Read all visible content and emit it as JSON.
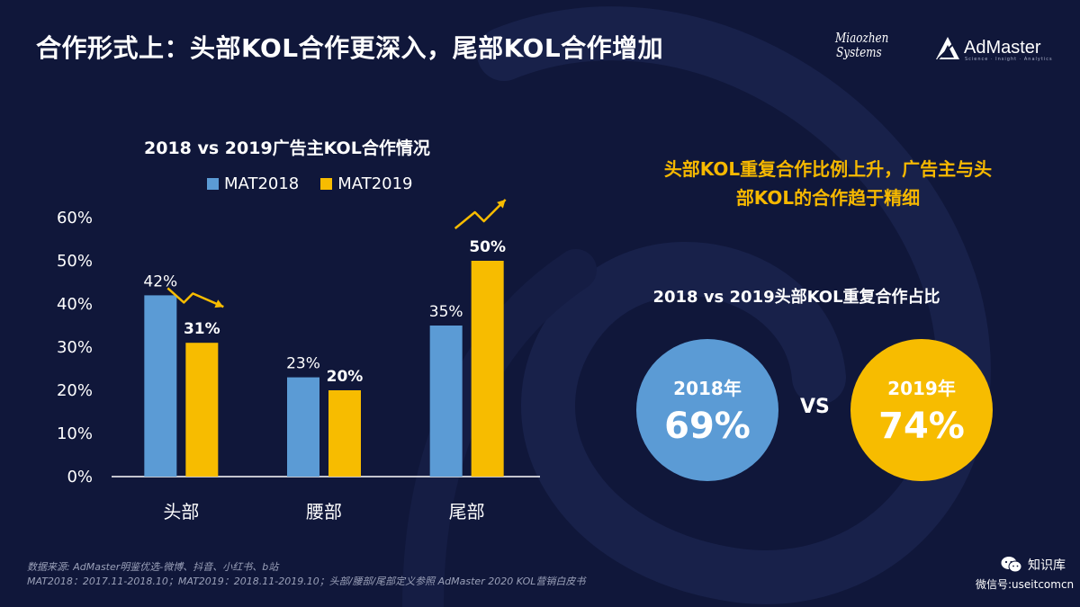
{
  "header": {
    "title": "合作形式上：头部KOL合作更深入，尾部KOL合作增加"
  },
  "logos": {
    "miaozhen_line1": "Miaozhen",
    "miaozhen_line2": "Systems",
    "admaster": "AdMaster",
    "admaster_tagline": "Science · Insight · Analytics"
  },
  "chart_data": {
    "type": "bar",
    "title": "2018 vs 2019广告主KOL合作情况",
    "categories": [
      "头部",
      "腰部",
      "尾部"
    ],
    "series": [
      {
        "name": "MAT2018",
        "values": [
          42,
          23,
          35
        ],
        "labels": [
          "42%",
          "23%",
          "35%"
        ],
        "color": "#5b9bd5",
        "bold_labels": false
      },
      {
        "name": "MAT2019",
        "values": [
          31,
          20,
          50
        ],
        "labels": [
          "31%",
          "20%",
          "50%"
        ],
        "color": "#f7bc00",
        "bold_labels": true
      }
    ],
    "ylim": [
      0,
      60
    ],
    "yticks": [
      "0%",
      "10%",
      "20%",
      "30%",
      "40%",
      "50%",
      "60%"
    ],
    "legend": "top",
    "grid": false,
    "annotations": [
      {
        "category": "头部",
        "trend": "down",
        "color": "#f7bc00"
      },
      {
        "category": "尾部",
        "trend": "up",
        "color": "#f7bc00"
      }
    ]
  },
  "right_panel": {
    "headline_line1": "头部KOL重复合作比例上升，广告主与头",
    "headline_line2": "部KOL的合作趋于精细",
    "subtitle": "2018 vs 2019头部KOL重复合作占比",
    "left_circle": {
      "year": "2018年",
      "value": "69%",
      "color": "#5b9bd5"
    },
    "vs_label": "VS",
    "right_circle": {
      "year": "2019年",
      "value": "74%",
      "color": "#f7bc00"
    }
  },
  "footer": {
    "source_line1": "数据来源: AdMaster明鉴优选-微博、抖音、小红书、b站",
    "source_line2": "MAT2018：2017.11-2018.10；MAT2019：2018.11-2019.10；头部/腰部/尾部定义参照 AdMaster 2020 KOL营销白皮书",
    "wechat_label": "知识库",
    "wechat_id": "微信号:useitcomcn"
  }
}
